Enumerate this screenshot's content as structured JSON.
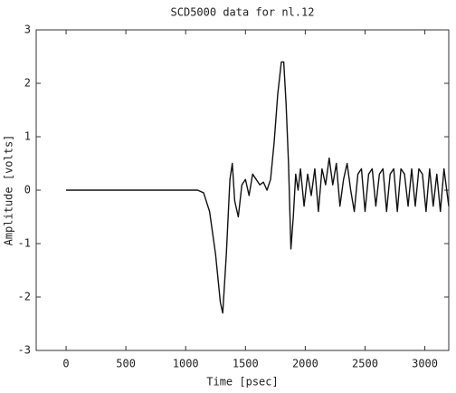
{
  "chart_data": {
    "type": "line",
    "title": "SCD5000 data for nl.12",
    "x_label": "Time [psec]",
    "y_label": "Amplitude [volts]",
    "x": [
      0,
      1100,
      1150,
      1200,
      1250,
      1290,
      1310,
      1340,
      1370,
      1390,
      1410,
      1440,
      1470,
      1500,
      1530,
      1560,
      1590,
      1620,
      1650,
      1680,
      1710,
      1740,
      1770,
      1800,
      1820,
      1840,
      1860,
      1880,
      1900,
      1920,
      1940,
      1960,
      1990,
      2020,
      2050,
      2080,
      2110,
      2140,
      2170,
      2200,
      2230,
      2260,
      2290,
      2320,
      2350,
      2380,
      2410,
      2440,
      2470,
      2500,
      2530,
      2560,
      2590,
      2620,
      2650,
      2680,
      2710,
      2740,
      2770,
      2800,
      2830,
      2860,
      2890,
      2920,
      2950,
      2980,
      3010,
      3040,
      3070,
      3100,
      3130,
      3160,
      3200
    ],
    "series": [
      {
        "color": "#111111",
        "values": [
          0,
          0,
          -0.05,
          -0.4,
          -1.2,
          -2.1,
          -2.3,
          -1.2,
          0.2,
          0.5,
          -0.2,
          -0.5,
          0.1,
          0.2,
          -0.1,
          0.3,
          0.2,
          0.1,
          0.15,
          0.0,
          0.2,
          0.9,
          1.8,
          2.4,
          2.4,
          1.6,
          0.5,
          -1.1,
          -0.5,
          0.3,
          0.0,
          0.4,
          -0.3,
          0.3,
          -0.1,
          0.4,
          -0.4,
          0.4,
          0.1,
          0.6,
          0.1,
          0.5,
          -0.3,
          0.2,
          0.5,
          0.0,
          -0.4,
          0.3,
          0.4,
          -0.4,
          0.3,
          0.4,
          -0.3,
          0.3,
          0.4,
          -0.4,
          0.3,
          0.4,
          -0.4,
          0.4,
          0.3,
          -0.3,
          0.4,
          -0.3,
          0.4,
          0.3,
          -0.4,
          0.4,
          -0.3,
          0.3,
          -0.4,
          0.4,
          -0.3
        ]
      }
    ],
    "xlim": [
      -250,
      3200
    ],
    "xticks": [
      0,
      500,
      1000,
      1500,
      2000,
      2500,
      3000
    ],
    "ylim": [
      -3,
      3
    ],
    "yticks": [
      -3,
      -2,
      -1,
      0,
      1,
      2,
      3
    ]
  }
}
